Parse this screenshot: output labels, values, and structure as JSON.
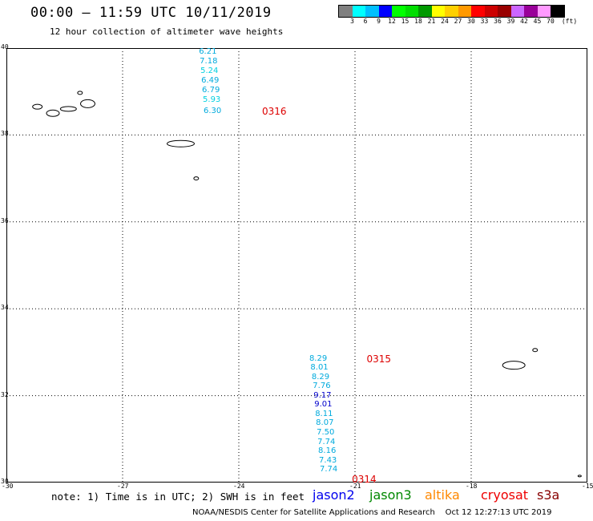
{
  "header": {
    "title": "00:00 – 11:59 UTC 10/11/2019",
    "subtitle": "12 hour collection of altimeter wave heights"
  },
  "colorbar": {
    "colors": [
      "#808080",
      "#00ffff",
      "#00bfff",
      "#0000ff",
      "#00ff00",
      "#00dd00",
      "#009900",
      "#ffff00",
      "#ffd000",
      "#ff9900",
      "#ff0000",
      "#cc0000",
      "#990000",
      "#cc66ff",
      "#990099",
      "#ff99ff",
      "#000000"
    ],
    "labels": [
      "3",
      "6",
      "9",
      "12",
      "15",
      "18",
      "21",
      "24",
      "27",
      "30",
      "33",
      "36",
      "39",
      "42",
      "45",
      "70"
    ],
    "unit": "(ft)"
  },
  "map": {
    "lat_labels": [
      "40",
      "38",
      "36",
      "34",
      "32",
      "30"
    ],
    "lon_labels": [
      "-30",
      "-27",
      "-24",
      "-21",
      "-18",
      "-15"
    ],
    "tracks": [
      {
        "orbit": "0316",
        "values": [
          {
            "lon": -24.8,
            "lat": 39.9,
            "swh": "6.21",
            "color": "#00aadd"
          },
          {
            "lon": -24.78,
            "lat": 39.68,
            "swh": "7.18",
            "color": "#00aadd"
          },
          {
            "lon": -24.76,
            "lat": 39.46,
            "swh": "5.24",
            "color": "#00d0e0"
          },
          {
            "lon": -24.74,
            "lat": 39.24,
            "swh": "6.49",
            "color": "#00aadd"
          },
          {
            "lon": -24.72,
            "lat": 39.02,
            "swh": "6.79",
            "color": "#00aadd"
          },
          {
            "lon": -24.7,
            "lat": 38.8,
            "swh": "5.93",
            "color": "#00d0e0"
          },
          {
            "lon": -24.68,
            "lat": 38.55,
            "swh": "6.30",
            "color": "#00aadd"
          }
        ]
      },
      {
        "orbit": "0315",
        "values": [
          {
            "lon": -21.95,
            "lat": 32.85,
            "swh": "8.29",
            "color": "#00aadd"
          },
          {
            "lon": -21.92,
            "lat": 32.63,
            "swh": "8.01",
            "color": "#00aadd"
          },
          {
            "lon": -21.89,
            "lat": 32.42,
            "swh": "8.29",
            "color": "#00aadd"
          },
          {
            "lon": -21.86,
            "lat": 32.21,
            "swh": "7.76",
            "color": "#00aadd"
          },
          {
            "lon": -21.84,
            "lat": 32.0,
            "swh": "9.17",
            "color": "#0000cc"
          },
          {
            "lon": -21.82,
            "lat": 31.79,
            "swh": "9.01",
            "color": "#0000cc"
          },
          {
            "lon": -21.8,
            "lat": 31.57,
            "swh": "8.11",
            "color": "#00aadd"
          },
          {
            "lon": -21.78,
            "lat": 31.36,
            "swh": "8.07",
            "color": "#00aadd"
          },
          {
            "lon": -21.76,
            "lat": 31.14,
            "swh": "7.50",
            "color": "#00aadd"
          },
          {
            "lon": -21.74,
            "lat": 30.93,
            "swh": "7.74",
            "color": "#00aadd"
          },
          {
            "lon": -21.72,
            "lat": 30.72,
            "swh": "8.16",
            "color": "#00aadd"
          },
          {
            "lon": -21.7,
            "lat": 30.5,
            "swh": "7.43",
            "color": "#00aadd"
          },
          {
            "lon": -21.68,
            "lat": 30.29,
            "swh": "7.74",
            "color": "#00aadd"
          }
        ]
      }
    ],
    "orbit_labels": [
      {
        "text": "0316",
        "lon": -23.4,
        "lat": 38.55
      },
      {
        "text": "0315",
        "lon": -20.7,
        "lat": 32.85
      },
      {
        "text": "0314",
        "lon": -21.08,
        "lat": 30.08
      }
    ]
  },
  "footer": {
    "note": "note: 1) Time is in UTC; 2) SWH is in feet",
    "satellites": [
      {
        "name": "jason2",
        "color": "#0000ee"
      },
      {
        "name": "jason3",
        "color": "#008800"
      },
      {
        "name": "altika",
        "color": "#ff8800"
      },
      {
        "name": "cryosat",
        "color": "#ee0000"
      },
      {
        "name": "s3a",
        "color": "#880000"
      }
    ],
    "credit": "NOAA/NESDIS Center for Satellite Applications and Research    Oct 12 12:27:13 UTC 2019"
  }
}
